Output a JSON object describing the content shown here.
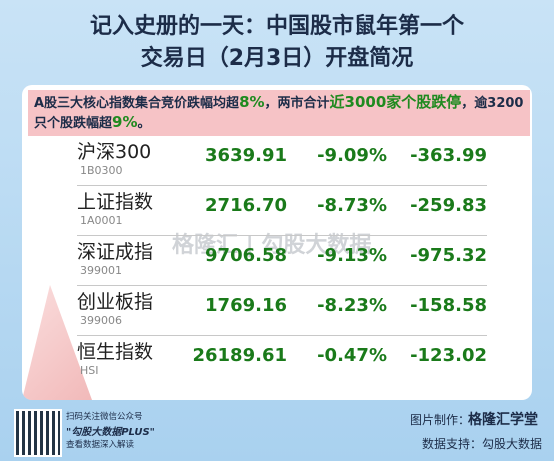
{
  "header": {
    "title_lines": [
      "记入史册的一天：中国股市鼠年第一个",
      "交易日（2月3日）开盘简况"
    ]
  },
  "summary": {
    "segments": [
      {
        "text": "A股三大核心指数集合竞价跌幅均超",
        "highlight": false
      },
      {
        "text": "8%",
        "highlight": true
      },
      {
        "text": "，两市合计",
        "highlight": false
      },
      {
        "text": "近3000家个股跌停",
        "highlight": true
      },
      {
        "text": "，逾3200只个股跌幅超",
        "highlight": false
      },
      {
        "text": "9%",
        "highlight": true
      },
      {
        "text": "。",
        "highlight": false
      }
    ]
  },
  "table": {
    "rows": [
      {
        "name": "沪深300",
        "code": "1B0300",
        "price": "3639.91",
        "pct": "-9.09%",
        "change": "-363.99"
      },
      {
        "name": "上证指数",
        "code": "1A0001",
        "price": "2716.70",
        "pct": "-8.73%",
        "change": "-259.83"
      },
      {
        "name": "深证成指",
        "code": "399001",
        "price": "9706.58",
        "pct": "-9.13%",
        "change": "-975.32"
      },
      {
        "name": "创业板指",
        "code": "399006",
        "price": "1769.16",
        "pct": "-8.23%",
        "change": "-158.58"
      },
      {
        "name": "恒生指数",
        "code": "HSI",
        "price": "26189.61",
        "pct": "-0.47%",
        "change": "-123.02"
      }
    ]
  },
  "watermark": {
    "brand": "格隆汇",
    "source": "勾股大数据"
  },
  "footer": {
    "qr_lines": [
      "扫码关注微信公众号",
      "\"勾股大数据PLUS\"",
      "查看数据深入解读"
    ],
    "made_by_label": "图片制作：",
    "made_by": "格隆汇学堂",
    "data_support": "数据支持：勾股大数据"
  }
}
